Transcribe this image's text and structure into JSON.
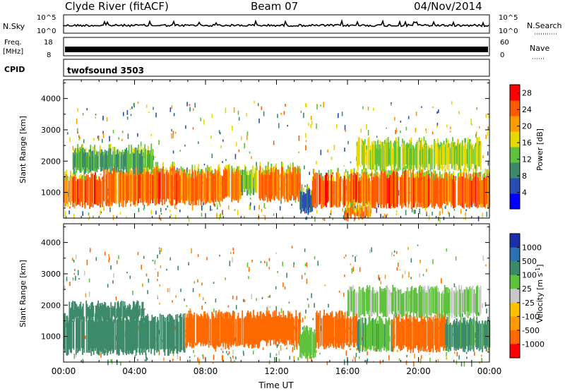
{
  "header": {
    "station": "Clyde River (fitACF)",
    "beam": "Beam 07",
    "date": "04/Nov/2014"
  },
  "param_panels": {
    "nsky": {
      "label": "N.Sky",
      "tick_top": "10^5",
      "tick_bottom": "10^0",
      "right_label": "N.Search",
      "right_tick_top": "10^5",
      "right_tick_bottom": "10^0"
    },
    "freq": {
      "label_line1": "Freq.",
      "label_line2": "[MHz]",
      "tick_top": "18",
      "tick_bottom": "8",
      "right_label": "Nave",
      "right_tick_top": "60",
      "right_tick_bottom": "0"
    },
    "cpid": {
      "label": "CPID",
      "text": "twofsound 3503"
    }
  },
  "colors": {
    "line": "#000000",
    "power_scale": [
      "#0000ff",
      "#2a4db5",
      "#3c8a6a",
      "#5ec23c",
      "#e6d800",
      "#ff9a00",
      "#ff5a00",
      "#ff0000"
    ],
    "velocity_scale": [
      "#ff0000",
      "#ff6a00",
      "#ff9a00",
      "#ffc000",
      "#c8c8c8",
      "#5ec23c",
      "#3c8a6a",
      "#2a70b5",
      "#1a2faa"
    ]
  },
  "chart_data": [
    {
      "type": "heatmap",
      "name": "power",
      "ylabel": "Slant Range [km]",
      "xlabel": "",
      "x_range_hours": [
        0,
        24
      ],
      "ylim": [
        180,
        4600
      ],
      "y_ticks": [
        1000,
        2000,
        3000,
        4000
      ],
      "colorbar_label": "Power [dB]",
      "colorbar_ticks": [
        4,
        8,
        12,
        16,
        20,
        24,
        28
      ],
      "colorbar_range": [
        0,
        30
      ],
      "bands": [
        {
          "t0": 0.0,
          "t1": 2.2,
          "r0": 600,
          "r1": 1500,
          "v": 27
        },
        {
          "t0": 2.2,
          "t1": 4.0,
          "r0": 650,
          "r1": 1650,
          "v": 26
        },
        {
          "t0": 4.0,
          "t1": 6.5,
          "r0": 700,
          "r1": 1700,
          "v": 27
        },
        {
          "t0": 6.5,
          "t1": 8.5,
          "r0": 700,
          "r1": 1600,
          "v": 26
        },
        {
          "t0": 8.5,
          "t1": 10.0,
          "r0": 800,
          "r1": 1650,
          "v": 25
        },
        {
          "t0": 10.0,
          "t1": 11.0,
          "r0": 1000,
          "r1": 1600,
          "v": 16
        },
        {
          "t0": 11.0,
          "t1": 13.3,
          "r0": 800,
          "r1": 1700,
          "v": 26
        },
        {
          "t0": 13.3,
          "t1": 14.0,
          "r0": 400,
          "r1": 1000,
          "v": 10
        },
        {
          "t0": 14.0,
          "t1": 17.5,
          "r0": 600,
          "r1": 1500,
          "v": 27
        },
        {
          "t0": 15.8,
          "t1": 17.3,
          "r0": 200,
          "r1": 500,
          "v": 26
        },
        {
          "t0": 17.5,
          "t1": 20.5,
          "r0": 600,
          "r1": 1600,
          "v": 27
        },
        {
          "t0": 20.5,
          "t1": 24.0,
          "r0": 600,
          "r1": 1500,
          "v": 27
        },
        {
          "t0": 0.5,
          "t1": 5.0,
          "r0": 1700,
          "r1": 2300,
          "v": 14
        },
        {
          "t0": 16.5,
          "t1": 23.5,
          "r0": 1800,
          "r1": 2500,
          "v": 18
        }
      ]
    },
    {
      "type": "heatmap",
      "name": "velocity",
      "ylabel": "Slant Range [km]",
      "xlabel": "Time UT",
      "x_range_hours": [
        0,
        24
      ],
      "x_ticks": [
        "00:00",
        "04:00",
        "08:00",
        "12:00",
        "16:00",
        "20:00",
        "00:00"
      ],
      "ylim": [
        180,
        4600
      ],
      "y_ticks": [
        1000,
        2000,
        3000,
        4000
      ],
      "colorbar_label": "Velocity [m s^-1]",
      "colorbar_ticks": [
        "1000",
        "500",
        "100",
        "25",
        "-25",
        "-100",
        "-500",
        "-1000"
      ],
      "bands": [
        {
          "t0": 0.0,
          "t1": 6.8,
          "r0": 500,
          "r1": 1600,
          "v": 120
        },
        {
          "t0": 0.3,
          "t1": 4.5,
          "r0": 1550,
          "r1": 2000,
          "v": 300
        },
        {
          "t0": 6.8,
          "t1": 11.0,
          "r0": 700,
          "r1": 1700,
          "v": -150
        },
        {
          "t0": 11.0,
          "t1": 13.3,
          "r0": 800,
          "r1": 1700,
          "v": -140
        },
        {
          "t0": 13.3,
          "t1": 14.2,
          "r0": 400,
          "r1": 1200,
          "v": 80
        },
        {
          "t0": 14.2,
          "t1": 16.5,
          "r0": 700,
          "r1": 1700,
          "v": -160
        },
        {
          "t0": 16.5,
          "t1": 18.5,
          "r0": 600,
          "r1": 1500,
          "v": 90
        },
        {
          "t0": 18.5,
          "t1": 21.5,
          "r0": 600,
          "r1": 1600,
          "v": -150
        },
        {
          "t0": 21.5,
          "t1": 24.0,
          "r0": 600,
          "r1": 1500,
          "v": 110
        },
        {
          "t0": 16.0,
          "t1": 23.5,
          "r0": 1700,
          "r1": 2500,
          "v": 30
        }
      ]
    }
  ]
}
